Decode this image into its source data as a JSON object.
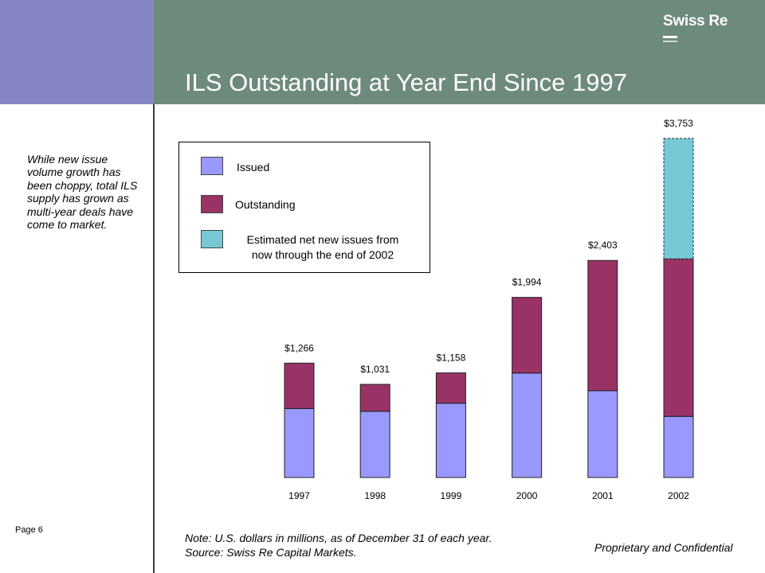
{
  "header": {
    "logo_text": "Swiss Re",
    "title": "ILS Outstanding at Year End Since 1997"
  },
  "side_note": "While new issue volume growth has been choppy, total ILS supply has grown as multi-year deals have come to market.",
  "page_number": "Page 6",
  "note_line1": "Note: U.S. dollars in millions, as of December 31 of each year.",
  "note_line2": "Source: Swiss Re Capital Markets.",
  "confidential": "Proprietary and Confidential",
  "colors": {
    "header_left": "#8585c3",
    "header_right": "#6e8a7c",
    "issued": "#9999ff",
    "outstanding": "#993366",
    "estimated": "#76c8d4"
  },
  "legend": {
    "issued": "Issued",
    "outstanding": "Outstanding",
    "estimated_line1": "Estimated net new issues from",
    "estimated_line2": "now through the end of 2002"
  },
  "chart_data": {
    "type": "bar",
    "stacked": true,
    "categories": [
      "1997",
      "1998",
      "1999",
      "2000",
      "2001",
      "2002"
    ],
    "series": [
      {
        "name": "Issued",
        "values": [
          763,
          732,
          822,
          1156,
          961,
          676
        ]
      },
      {
        "name": "Outstanding",
        "values": [
          503,
          299,
          336,
          838,
          1442,
          1745
        ]
      },
      {
        "name": "Estimated net new issues from now through the end of 2002",
        "values": [
          0,
          0,
          0,
          0,
          0,
          1332
        ]
      }
    ],
    "totals": [
      1266,
      1031,
      1158,
      1994,
      2403,
      3753
    ],
    "total_labels": [
      "$1,266",
      "$1,031",
      "$1,158",
      "$1,994",
      "$2,403",
      "$3,753"
    ],
    "title": "ILS Outstanding at Year End Since 1997",
    "xlabel": "",
    "ylabel": "",
    "ylim": [
      0,
      3753
    ],
    "grid": false,
    "legend_position": "top-left"
  }
}
